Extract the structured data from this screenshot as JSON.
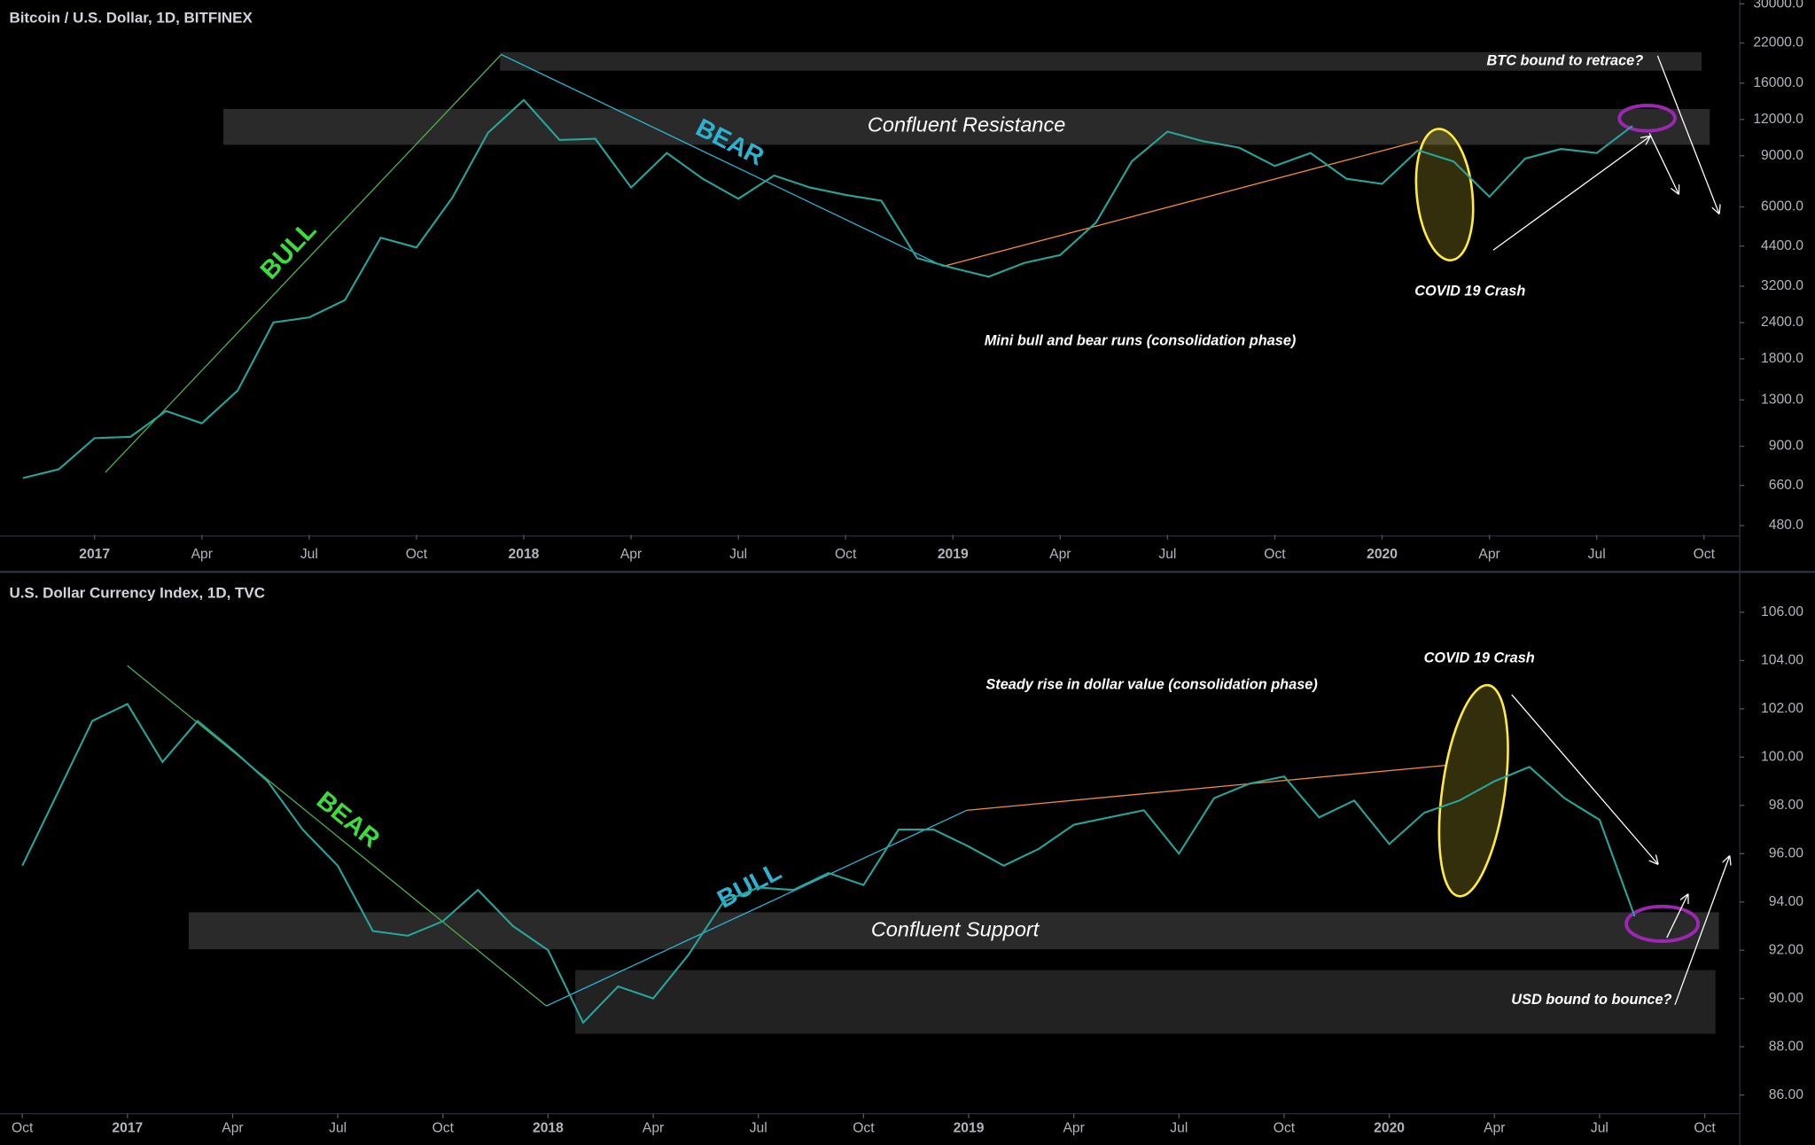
{
  "chart_data": [
    {
      "type": "line",
      "title": "Bitcoin / U.S. Dollar, 1D, BITFINEX",
      "x": [
        "2016-11",
        "2016-12",
        "2017-01",
        "2017-02",
        "2017-03",
        "2017-04",
        "2017-05",
        "2017-06",
        "2017-07",
        "2017-08",
        "2017-09",
        "2017-10",
        "2017-11",
        "2017-12",
        "2018-01",
        "2018-02",
        "2018-03",
        "2018-04",
        "2018-05",
        "2018-06",
        "2018-07",
        "2018-08",
        "2018-09",
        "2018-10",
        "2018-11",
        "2018-12",
        "2019-01",
        "2019-02",
        "2019-03",
        "2019-04",
        "2019-05",
        "2019-06",
        "2019-07",
        "2019-08",
        "2019-09",
        "2019-10",
        "2019-11",
        "2019-12",
        "2020-01",
        "2020-02",
        "2020-03",
        "2020-04",
        "2020-05",
        "2020-06",
        "2020-07",
        "2020-08"
      ],
      "series": [
        {
          "color": "#26a69a",
          "values": [
            700,
            750,
            960,
            970,
            1190,
            1080,
            1400,
            2400,
            2500,
            2870,
            4700,
            4350,
            6450,
            10800,
            14000,
            10200,
            10300,
            7000,
            9200,
            7500,
            6400,
            7700,
            7000,
            6600,
            6300,
            4000,
            3700,
            3450,
            3850,
            4100,
            5300,
            8600,
            10900,
            10100,
            9600,
            8300,
            9200,
            7500,
            7200,
            9400,
            8600,
            6500,
            8800,
            9500,
            9200,
            11400
          ]
        }
      ],
      "log_scale": true,
      "grid": false,
      "ylim": [
        446,
        30900
      ],
      "yticks": [
        {
          "value": 480,
          "label": "480.0"
        },
        {
          "value": 660,
          "label": "660.0"
        },
        {
          "value": 900,
          "label": "900.0"
        },
        {
          "value": 1300,
          "label": "1300.0"
        },
        {
          "value": 1800,
          "label": "1800.0"
        },
        {
          "value": 2400,
          "label": "2400.0"
        },
        {
          "value": 3200,
          "label": "3200.0"
        },
        {
          "value": 4400,
          "label": "4400.0"
        },
        {
          "value": 6000,
          "label": "6000.0"
        },
        {
          "value": 9000,
          "label": "9000.0"
        },
        {
          "value": 12000,
          "label": "12000.0"
        },
        {
          "value": 16000,
          "label": "16000.0"
        },
        {
          "value": 22000,
          "label": "22000.0"
        },
        {
          "value": 30000,
          "label": "30000.0"
        }
      ],
      "xlim": [
        "2016-10",
        "2020-11"
      ],
      "xticks": [
        {
          "value": "2017-01",
          "label": "2017"
        },
        {
          "value": "2017-04",
          "label": "Apr"
        },
        {
          "value": "2017-07",
          "label": "Jul"
        },
        {
          "value": "2017-10",
          "label": "Oct"
        },
        {
          "value": "2018-01",
          "label": "2018"
        },
        {
          "value": "2018-04",
          "label": "Apr"
        },
        {
          "value": "2018-07",
          "label": "Jul"
        },
        {
          "value": "2018-10",
          "label": "Oct"
        },
        {
          "value": "2019-01",
          "label": "2019"
        },
        {
          "value": "2019-04",
          "label": "Apr"
        },
        {
          "value": "2019-07",
          "label": "Jul"
        },
        {
          "value": "2019-10",
          "label": "Oct"
        },
        {
          "value": "2020-01",
          "label": "2020"
        },
        {
          "value": "2020-04",
          "label": "Apr"
        },
        {
          "value": "2020-07",
          "label": "Jul"
        },
        {
          "value": "2020-10",
          "label": "Oct"
        }
      ],
      "annotations": [
        "BULL",
        "BEAR",
        "Confluent Resistance",
        "BTC bound to retrace?",
        "COVID 19 Crash",
        "Mini bull and bear runs (consolidation phase)"
      ]
    },
    {
      "type": "line",
      "title": "U.S. Dollar Currency Index, 1D, TVC",
      "x": [
        "2016-10",
        "2016-11",
        "2016-12",
        "2017-01",
        "2017-02",
        "2017-03",
        "2017-04",
        "2017-05",
        "2017-06",
        "2017-07",
        "2017-08",
        "2017-09",
        "2017-10",
        "2017-11",
        "2017-12",
        "2018-01",
        "2018-02",
        "2018-03",
        "2018-04",
        "2018-05",
        "2018-06",
        "2018-07",
        "2018-08",
        "2018-09",
        "2018-10",
        "2018-11",
        "2018-12",
        "2019-01",
        "2019-02",
        "2019-03",
        "2019-04",
        "2019-05",
        "2019-06",
        "2019-07",
        "2019-08",
        "2019-09",
        "2019-10",
        "2019-11",
        "2019-12",
        "2020-01",
        "2020-02",
        "2020-03",
        "2020-04",
        "2020-05",
        "2020-06",
        "2020-07",
        "2020-08"
      ],
      "series": [
        {
          "color": "#26a69a",
          "values": [
            95.5,
            98.5,
            101.5,
            102.2,
            99.8,
            101.5,
            100.3,
            99.0,
            97.0,
            95.5,
            92.8,
            92.6,
            93.2,
            94.5,
            93.0,
            92.0,
            89.0,
            90.5,
            90.0,
            91.8,
            94.0,
            94.6,
            94.5,
            95.2,
            94.7,
            97.0,
            97.0,
            96.3,
            95.5,
            96.2,
            97.2,
            97.5,
            97.8,
            96.0,
            98.3,
            98.9,
            99.2,
            97.5,
            98.2,
            96.4,
            97.7,
            98.2,
            99.0,
            99.6,
            98.3,
            97.4,
            93.4
          ]
        }
      ],
      "log_scale": false,
      "grid": false,
      "ylim": [
        85.23,
        107.53
      ],
      "yticks": [
        {
          "value": 86,
          "label": "86.00"
        },
        {
          "value": 88,
          "label": "88.00"
        },
        {
          "value": 90,
          "label": "90.00"
        },
        {
          "value": 92,
          "label": "92.00"
        },
        {
          "value": 94,
          "label": "94.00"
        },
        {
          "value": 96,
          "label": "96.00"
        },
        {
          "value": 98,
          "label": "98.00"
        },
        {
          "value": 100,
          "label": "100.00"
        },
        {
          "value": 102,
          "label": "102.00"
        },
        {
          "value": 104,
          "label": "104.00"
        },
        {
          "value": 106,
          "label": "106.00"
        }
      ],
      "xlim": [
        "2016-09",
        "2020-11"
      ],
      "xticks": [
        {
          "value": "2016-10",
          "label": "Oct"
        },
        {
          "value": "2017-01",
          "label": "2017"
        },
        {
          "value": "2017-04",
          "label": "Apr"
        },
        {
          "value": "2017-07",
          "label": "Jul"
        },
        {
          "value": "2017-10",
          "label": "Oct"
        },
        {
          "value": "2018-01",
          "label": "2018"
        },
        {
          "value": "2018-04",
          "label": "Apr"
        },
        {
          "value": "2018-07",
          "label": "Jul"
        },
        {
          "value": "2018-10",
          "label": "Oct"
        },
        {
          "value": "2019-01",
          "label": "2019"
        },
        {
          "value": "2019-04",
          "label": "Apr"
        },
        {
          "value": "2019-07",
          "label": "Jul"
        },
        {
          "value": "2019-10",
          "label": "Oct"
        },
        {
          "value": "2020-01",
          "label": "2020"
        },
        {
          "value": "2020-04",
          "label": "Apr"
        },
        {
          "value": "2020-07",
          "label": "Jul"
        },
        {
          "value": "2020-10",
          "label": "Oct"
        }
      ],
      "annotations": [
        "BEAR",
        "BULL",
        "Confluent Support",
        "COVID 19 Crash",
        "Steady rise in dollar value (consolidation phase)",
        "USD bound to bounce?"
      ]
    }
  ]
}
